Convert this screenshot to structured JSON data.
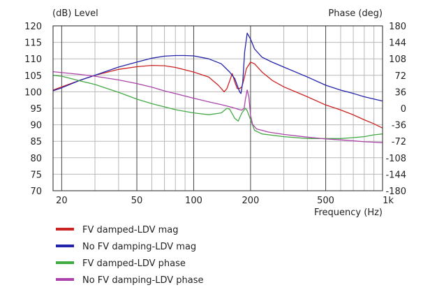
{
  "chart_data": {
    "type": "line",
    "title": "",
    "ylabel_left": "(dB)  Level",
    "ylabel_right": "Phase  (deg)",
    "xlabel": "Frequency  (Hz)",
    "x_scale": "log",
    "xlim": [
      18,
      1000
    ],
    "ylim_left": [
      70,
      120
    ],
    "ylim_right": [
      -180,
      180
    ],
    "x_ticks": [
      {
        "value": 20,
        "label": "20"
      },
      {
        "value": 50,
        "label": "50"
      },
      {
        "value": 100,
        "label": "100"
      },
      {
        "value": 200,
        "label": "200"
      },
      {
        "value": 500,
        "label": "500"
      },
      {
        "value": 1000,
        "label": "1k"
      }
    ],
    "x_minor_grid": [
      30,
      40,
      60,
      70,
      80,
      90,
      300,
      400,
      600,
      700,
      800,
      900
    ],
    "y_ticks_left": [
      70,
      75,
      80,
      85,
      90,
      95,
      100,
      105,
      110,
      115,
      120
    ],
    "y_ticks_right": [
      -180,
      -144,
      -108,
      -72,
      -36,
      0,
      36,
      72,
      108,
      144,
      180
    ],
    "grid": true,
    "legend_position": "bottom-left",
    "series": [
      {
        "name": "FV damped-LDV mag",
        "color": "#cc2222",
        "axis": "left",
        "points": [
          [
            18,
            100.5
          ],
          [
            20,
            101.5
          ],
          [
            25,
            103.5
          ],
          [
            30,
            105
          ],
          [
            40,
            106.8
          ],
          [
            50,
            107.6
          ],
          [
            60,
            108
          ],
          [
            70,
            107.9
          ],
          [
            80,
            107.4
          ],
          [
            100,
            106
          ],
          [
            120,
            104.5
          ],
          [
            135,
            102
          ],
          [
            145,
            100
          ],
          [
            150,
            101
          ],
          [
            160,
            105.5
          ],
          [
            165,
            103
          ],
          [
            170,
            101
          ],
          [
            175,
            101
          ],
          [
            180,
            101.5
          ],
          [
            185,
            104
          ],
          [
            190,
            107
          ],
          [
            200,
            109
          ],
          [
            210,
            108.5
          ],
          [
            230,
            106
          ],
          [
            260,
            103.5
          ],
          [
            300,
            101.5
          ],
          [
            400,
            98.5
          ],
          [
            500,
            96
          ],
          [
            600,
            94.5
          ],
          [
            700,
            93
          ],
          [
            800,
            91.5
          ],
          [
            900,
            90.3
          ],
          [
            1000,
            89
          ]
        ]
      },
      {
        "name": "No FV damping-LDV mag",
        "color": "#2222aa",
        "axis": "left",
        "points": [
          [
            18,
            100.3
          ],
          [
            20,
            101.2
          ],
          [
            25,
            103.5
          ],
          [
            30,
            105
          ],
          [
            40,
            107.5
          ],
          [
            50,
            109
          ],
          [
            60,
            110.2
          ],
          [
            70,
            110.8
          ],
          [
            80,
            111
          ],
          [
            90,
            111
          ],
          [
            100,
            110.9
          ],
          [
            120,
            110
          ],
          [
            140,
            108.5
          ],
          [
            155,
            106
          ],
          [
            165,
            104
          ],
          [
            175,
            100
          ],
          [
            178,
            99.5
          ],
          [
            182,
            103
          ],
          [
            186,
            112
          ],
          [
            192,
            117.8
          ],
          [
            200,
            116
          ],
          [
            210,
            113
          ],
          [
            230,
            110.5
          ],
          [
            260,
            109
          ],
          [
            300,
            107.5
          ],
          [
            400,
            104.5
          ],
          [
            500,
            102
          ],
          [
            600,
            100.5
          ],
          [
            700,
            99.5
          ],
          [
            800,
            98.5
          ],
          [
            900,
            97.8
          ],
          [
            1000,
            97.2
          ]
        ]
      },
      {
        "name": "FV damped-LDV phase",
        "color": "#44aa44",
        "axis": "right",
        "points": [
          [
            18,
            72
          ],
          [
            20,
            70
          ],
          [
            25,
            60
          ],
          [
            30,
            52
          ],
          [
            40,
            35
          ],
          [
            50,
            20
          ],
          [
            60,
            10
          ],
          [
            70,
            3
          ],
          [
            80,
            -3
          ],
          [
            100,
            -10
          ],
          [
            120,
            -14
          ],
          [
            140,
            -10
          ],
          [
            150,
            0
          ],
          [
            155,
            -2
          ],
          [
            165,
            -22
          ],
          [
            172,
            -28
          ],
          [
            180,
            -10
          ],
          [
            188,
            0
          ],
          [
            192,
            -5
          ],
          [
            200,
            -25
          ],
          [
            210,
            -48
          ],
          [
            230,
            -56
          ],
          [
            300,
            -62
          ],
          [
            400,
            -66
          ],
          [
            500,
            -66
          ],
          [
            600,
            -66
          ],
          [
            700,
            -64
          ],
          [
            800,
            -62
          ],
          [
            900,
            -58
          ],
          [
            1000,
            -56
          ]
        ]
      },
      {
        "name": "No FV damping-LDV phase",
        "color": "#aa44aa",
        "axis": "right",
        "points": [
          [
            18,
            80
          ],
          [
            20,
            78
          ],
          [
            25,
            74
          ],
          [
            30,
            70
          ],
          [
            40,
            62
          ],
          [
            50,
            54
          ],
          [
            60,
            46
          ],
          [
            70,
            38
          ],
          [
            80,
            32
          ],
          [
            100,
            22
          ],
          [
            120,
            14
          ],
          [
            140,
            8
          ],
          [
            160,
            2
          ],
          [
            175,
            -3
          ],
          [
            180,
            -4
          ],
          [
            185,
            0
          ],
          [
            188,
            20
          ],
          [
            192,
            40
          ],
          [
            196,
            25
          ],
          [
            200,
            -15
          ],
          [
            205,
            -35
          ],
          [
            215,
            -45
          ],
          [
            250,
            -52
          ],
          [
            300,
            -57
          ],
          [
            400,
            -63
          ],
          [
            500,
            -67
          ],
          [
            600,
            -69
          ],
          [
            700,
            -71
          ],
          [
            800,
            -73
          ],
          [
            900,
            -74
          ],
          [
            1000,
            -75
          ]
        ]
      }
    ]
  }
}
